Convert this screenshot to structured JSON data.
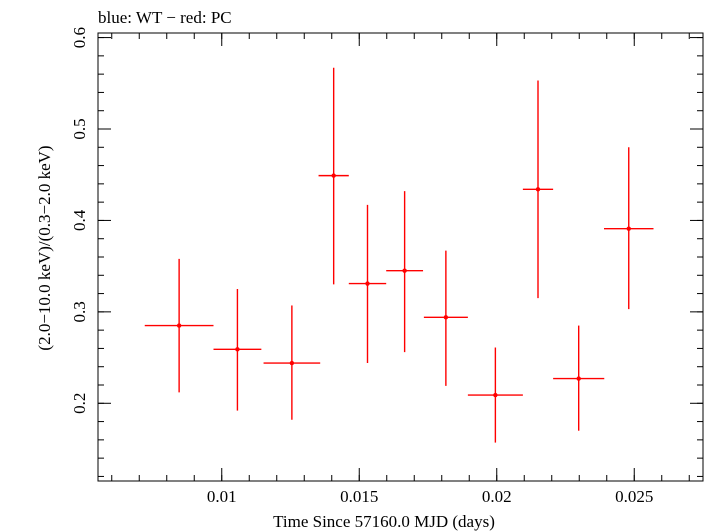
{
  "chart_data": {
    "type": "scatter",
    "title": "blue: WT − red: PC",
    "xlabel": "Time Since 57160.0 MJD (days)",
    "ylabel": "(2.0−10.0 keV)/(0.3−2.0 keV)",
    "xlim": [
      0.0055,
      0.0275
    ],
    "ylim": [
      0.115,
      0.605
    ],
    "x_ticks": [
      {
        "value": 0.01,
        "label": "0.01"
      },
      {
        "value": 0.015,
        "label": "0.015"
      },
      {
        "value": 0.02,
        "label": "0.02"
      },
      {
        "value": 0.025,
        "label": "0.025"
      }
    ],
    "y_ticks": [
      {
        "value": 0.2,
        "label": "0.2"
      },
      {
        "value": 0.3,
        "label": "0.3"
      },
      {
        "value": 0.4,
        "label": "0.4"
      },
      {
        "value": 0.5,
        "label": "0.5"
      },
      {
        "value": 0.6,
        "label": "0.6"
      }
    ],
    "x_minor_step": 0.001,
    "y_minor_step": 0.02,
    "grid": false,
    "series": [
      {
        "name": "PC",
        "color": "#ff0000",
        "points": [
          {
            "x": 0.00845,
            "xerr": 0.00125,
            "y": 0.285,
            "yerr_lo": 0.073,
            "yerr_hi": 0.073
          },
          {
            "x": 0.01057,
            "xerr": 0.00087,
            "y": 0.259,
            "yerr_lo": 0.067,
            "yerr_hi": 0.066
          },
          {
            "x": 0.01255,
            "xerr": 0.00103,
            "y": 0.244,
            "yerr_lo": 0.062,
            "yerr_hi": 0.063
          },
          {
            "x": 0.01407,
            "xerr": 0.00055,
            "y": 0.449,
            "yerr_lo": 0.119,
            "yerr_hi": 0.118
          },
          {
            "x": 0.0153,
            "xerr": 0.00068,
            "y": 0.331,
            "yerr_lo": 0.087,
            "yerr_hi": 0.086
          },
          {
            "x": 0.01665,
            "xerr": 0.00067,
            "y": 0.345,
            "yerr_lo": 0.089,
            "yerr_hi": 0.087
          },
          {
            "x": 0.01815,
            "xerr": 0.0008,
            "y": 0.294,
            "yerr_lo": 0.075,
            "yerr_hi": 0.073
          },
          {
            "x": 0.01995,
            "xerr": 0.001,
            "y": 0.209,
            "yerr_lo": 0.052,
            "yerr_hi": 0.052
          },
          {
            "x": 0.0215,
            "xerr": 0.00055,
            "y": 0.434,
            "yerr_lo": 0.119,
            "yerr_hi": 0.119
          },
          {
            "x": 0.02298,
            "xerr": 0.00093,
            "y": 0.227,
            "yerr_lo": 0.057,
            "yerr_hi": 0.058
          },
          {
            "x": 0.0248,
            "xerr": 0.0009,
            "y": 0.391,
            "yerr_lo": 0.088,
            "yerr_hi": 0.089
          }
        ]
      }
    ]
  }
}
